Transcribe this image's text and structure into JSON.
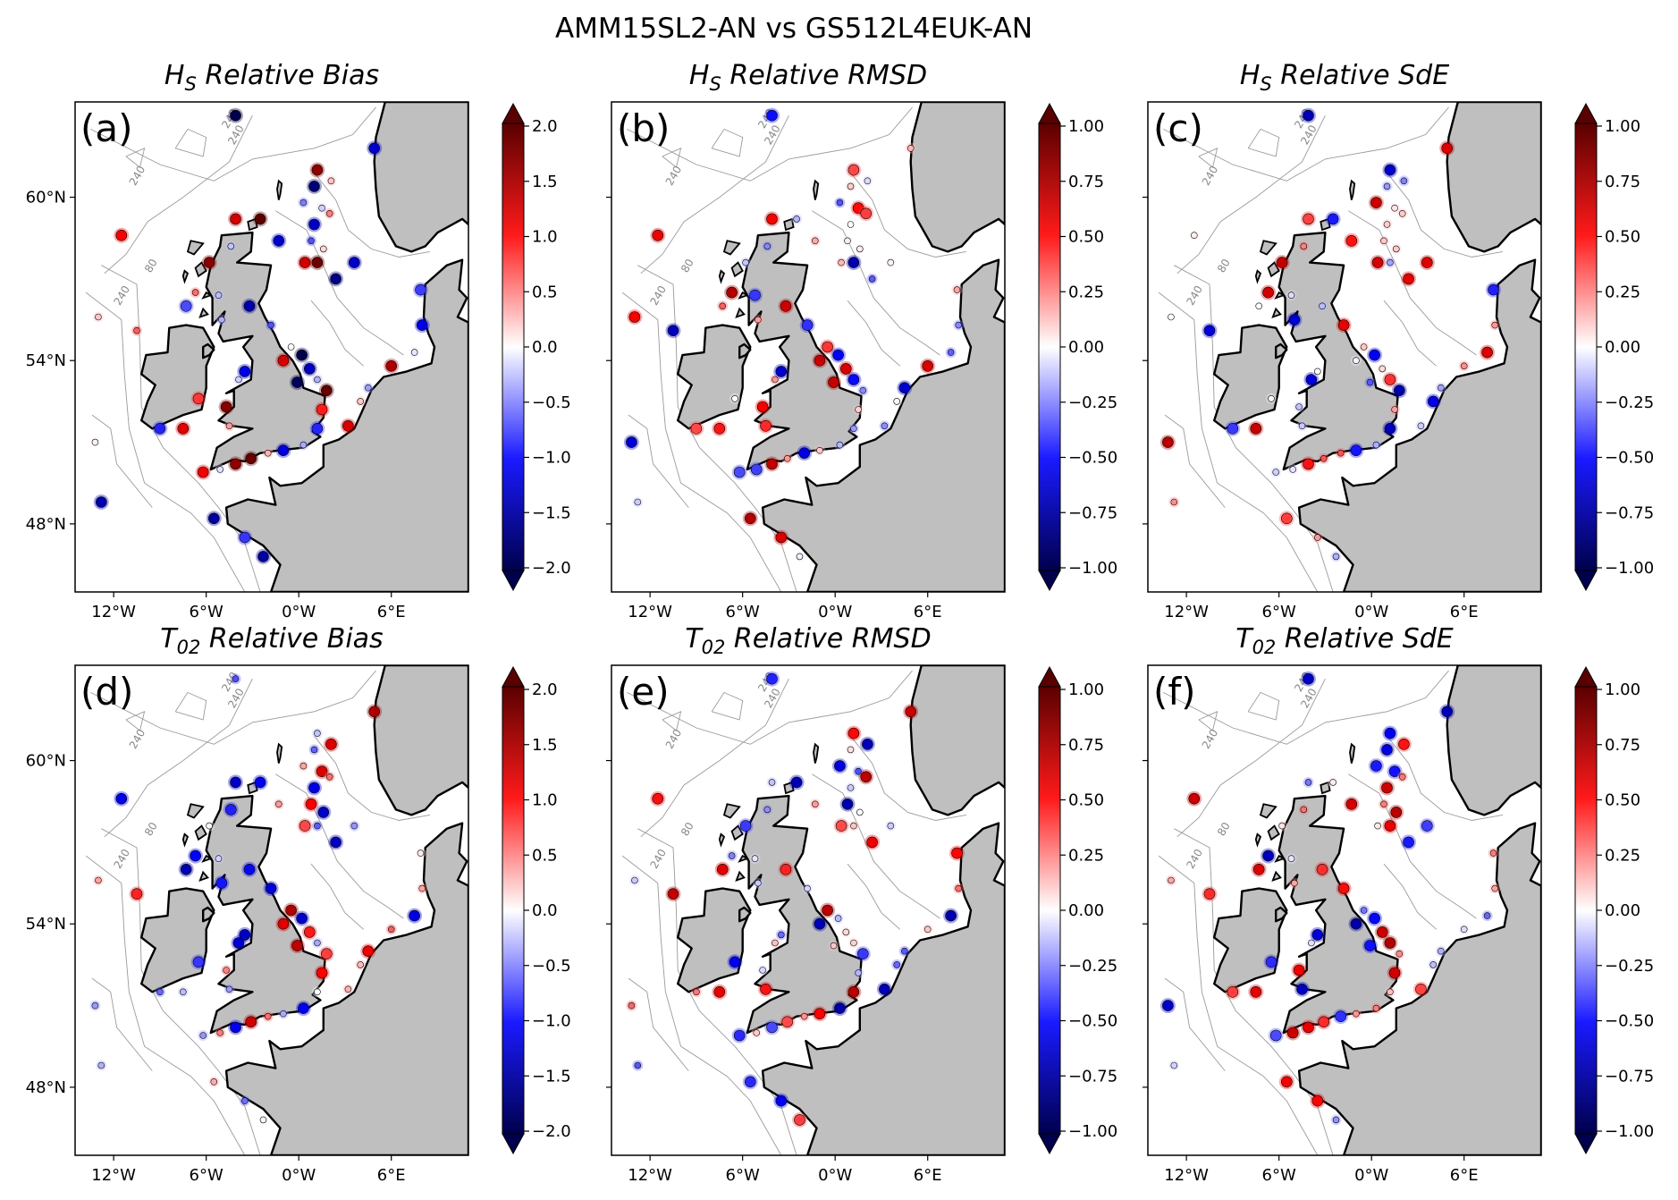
{
  "figure_title": "AMM15SL2-AN vs GS512L4EUK-AN",
  "lon_tick_labels": [
    "12°W",
    "6°W",
    "0°W",
    "6°E"
  ],
  "lat_tick_labels": [
    "60°N",
    "54°N",
    "48°N"
  ],
  "isobath_labels": [
    "240",
    "80",
    "240",
    "240",
    "240"
  ],
  "colors": {
    "land": "#bfbfbf",
    "coast": "#000000",
    "isobath": "#9a9a9a",
    "colormap_low": "#00004d",
    "colormap_mid": "#ffffff",
    "colormap_high": "#5a0000"
  },
  "chart_data": [
    {
      "type": "map",
      "panel": "(a)",
      "title_main": "H",
      "title_sub": "S",
      "title_rest": " Relative Bias",
      "colorbar": {
        "min": -2.0,
        "max": 2.0,
        "ticks": [
          "2.0",
          "1.5",
          "1.0",
          "0.5",
          "0.0",
          "−0.5",
          "−1.0",
          "−1.5",
          "−2.0"
        ],
        "extend": "both",
        "cmap": "seismic"
      }
    },
    {
      "type": "map",
      "panel": "(b)",
      "title_main": "H",
      "title_sub": "S",
      "title_rest": " Relative RMSD",
      "colorbar": {
        "min": -1.0,
        "max": 1.0,
        "ticks": [
          "1.00",
          "0.75",
          "0.50",
          "0.25",
          "0.00",
          "−0.25",
          "−0.50",
          "−0.75",
          "−1.00"
        ],
        "extend": "both",
        "cmap": "seismic"
      }
    },
    {
      "type": "map",
      "panel": "(c)",
      "title_main": "H",
      "title_sub": "S",
      "title_rest": " Relative SdE",
      "colorbar": {
        "min": -1.0,
        "max": 1.0,
        "ticks": [
          "1.00",
          "0.75",
          "0.50",
          "0.25",
          "0.00",
          "−0.25",
          "−0.50",
          "−0.75",
          "−1.00"
        ],
        "extend": "both",
        "cmap": "seismic"
      }
    },
    {
      "type": "map",
      "panel": "(d)",
      "title_main": "T",
      "title_sub": "02",
      "title_rest": " Relative Bias",
      "colorbar": {
        "min": -2.0,
        "max": 2.0,
        "ticks": [
          "2.0",
          "1.5",
          "1.0",
          "0.5",
          "0.0",
          "−0.5",
          "−1.0",
          "−1.5",
          "−2.0"
        ],
        "extend": "both",
        "cmap": "seismic"
      }
    },
    {
      "type": "map",
      "panel": "(e)",
      "title_main": "T",
      "title_sub": "02",
      "title_rest": " Relative RMSD",
      "colorbar": {
        "min": -1.0,
        "max": 1.0,
        "ticks": [
          "1.00",
          "0.75",
          "0.50",
          "0.25",
          "0.00",
          "−0.25",
          "−0.50",
          "−0.75",
          "−1.00"
        ],
        "extend": "both",
        "cmap": "seismic"
      }
    },
    {
      "type": "map",
      "panel": "(f)",
      "title_main": "T",
      "title_sub": "02",
      "title_rest": " Relative SdE",
      "colorbar": {
        "min": -1.0,
        "max": 1.0,
        "ticks": [
          "1.00",
          "0.75",
          "0.50",
          "0.25",
          "0.00",
          "−0.25",
          "−0.50",
          "−0.75",
          "−1.00"
        ],
        "extend": "both",
        "cmap": "seismic"
      }
    }
  ]
}
